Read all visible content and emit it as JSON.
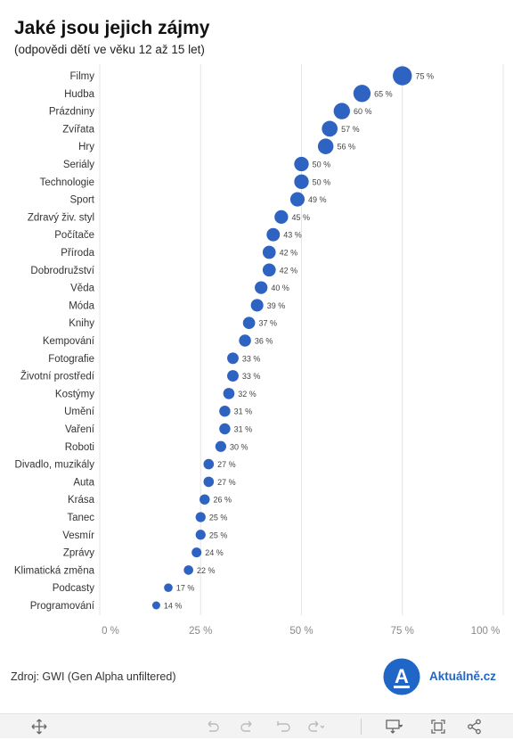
{
  "title": "Jaké jsou jejich zájmy",
  "subtitle": "(odpovědi dětí ve věku 12 až 15 let)",
  "source": "Zdroj: GWI (Gen Alpha unfiltered)",
  "brand": {
    "name": "Aktuálně.cz",
    "logo_letter": "A",
    "color": "#1f66c6"
  },
  "colors": {
    "dot": "#2e63c2",
    "grid": "#e6e6e6",
    "tick": "#888888"
  },
  "chart_data": {
    "type": "scatter",
    "categories": [
      "Filmy",
      "Hudba",
      "Prázdniny",
      "Zvířata",
      "Hry",
      "Seriály",
      "Technologie",
      "Sport",
      "Zdravý živ. styl",
      "Počítače",
      "Příroda",
      "Dobrodružství",
      "Věda",
      "Móda",
      "Knihy",
      "Kempování",
      "Fotografie",
      "Životní prostředí",
      "Kostýmy",
      "Umění",
      "Vaření",
      "Roboti",
      "Divadlo, muzikály",
      "Auta",
      "Krása",
      "Tanec",
      "Vesmír",
      "Zprávy",
      "Klimatická změna",
      "Podcasty",
      "Programování"
    ],
    "values": [
      75,
      65,
      60,
      57,
      56,
      50,
      50,
      49,
      45,
      43,
      42,
      42,
      40,
      39,
      37,
      36,
      33,
      33,
      32,
      31,
      31,
      30,
      27,
      27,
      26,
      25,
      25,
      24,
      22,
      17,
      14
    ],
    "value_labels": [
      "75 %",
      "65 %",
      "60 %",
      "57 %",
      "56 %",
      "50 %",
      "50 %",
      "49 %",
      "45 %",
      "43 %",
      "42 %",
      "42 %",
      "40 %",
      "39 %",
      "37 %",
      "36 %",
      "33 %",
      "33 %",
      "32 %",
      "31 %",
      "31 %",
      "30 %",
      "27 %",
      "27 %",
      "26 %",
      "25 %",
      "25 %",
      "24 %",
      "22 %",
      "17 %",
      "14 %"
    ],
    "x_ticks": [
      0,
      25,
      50,
      75,
      100
    ],
    "x_tick_labels": [
      "0 %",
      "25 %",
      "50 %",
      "75 %",
      "100 %"
    ],
    "xlim": [
      0,
      100
    ],
    "grid": true,
    "marker_size_encodes_value": true
  },
  "toolbar": {
    "icons": [
      "move-icon",
      "undo-icon",
      "redo-icon",
      "revert-icon",
      "forward-icon",
      "download-icon",
      "fullscreen-icon",
      "share-icon"
    ]
  }
}
